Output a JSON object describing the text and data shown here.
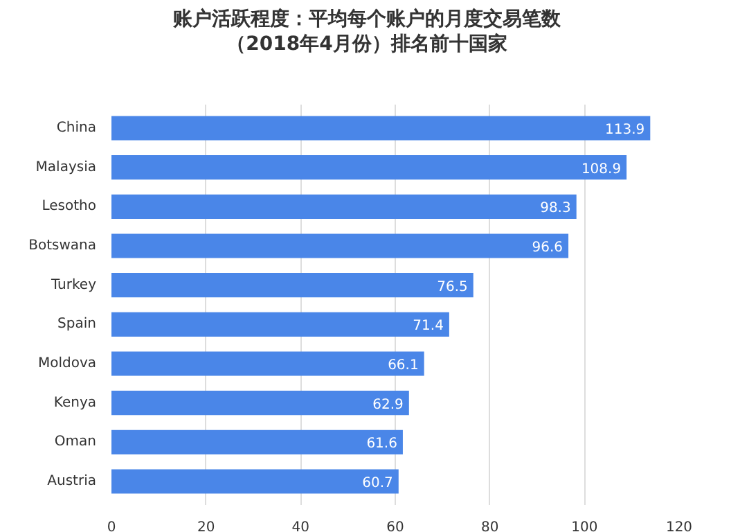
{
  "chart_data": {
    "type": "bar",
    "orientation": "horizontal",
    "title": "账户活跃程度：平均每个账户的月度交易笔数（2018年4月份）排名前十国家",
    "categories": [
      "China",
      "Malaysia",
      "Lesotho",
      "Botswana",
      "Turkey",
      "Spain",
      "Moldova",
      "Kenya",
      "Oman",
      "Austria"
    ],
    "values": [
      113.9,
      108.9,
      98.3,
      96.6,
      76.5,
      71.4,
      66.1,
      62.9,
      61.6,
      60.7
    ],
    "color": "#4a86e8",
    "xlim": [
      0,
      120
    ],
    "xticks": [
      0,
      20,
      40,
      60,
      80,
      100,
      120
    ],
    "grid": "x",
    "data_labels": true
  }
}
